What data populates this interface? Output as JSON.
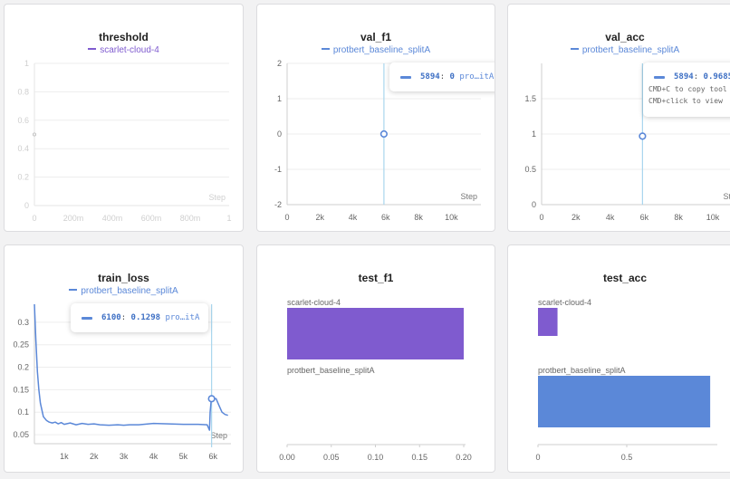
{
  "colors": {
    "purple": "#7f5bcf",
    "blue": "#5b88d8",
    "hover_line": "#a9d6ee"
  },
  "panels": [
    {
      "title": "threshold",
      "legend": "scarlet-cloud-4",
      "legend_color": "#7f5bcf",
      "step_label": "Step",
      "chart_data": {
        "type": "line",
        "x": [
          0
        ],
        "series": [
          {
            "name": "scarlet-cloud-4",
            "values": [
              0.5
            ]
          }
        ],
        "x_ticks": [
          "0",
          "200m",
          "400m",
          "600m",
          "800m",
          "1"
        ],
        "y_ticks": [
          "0",
          "0.2",
          "0.4",
          "0.6",
          "0.8",
          "1"
        ],
        "xlim": [
          0,
          1
        ],
        "ylim": [
          0,
          1
        ],
        "xlabel": "Step",
        "grid": true,
        "faded": true
      }
    },
    {
      "title": "val_f1",
      "legend": "protbert_baseline_splitA",
      "legend_color": "#5b88d8",
      "step_label": "Step",
      "tooltip": {
        "step": "5894",
        "value": "0",
        "name": "pro…itA"
      },
      "chart_data": {
        "type": "line",
        "x": [
          5894
        ],
        "series": [
          {
            "name": "protbert_baseline_splitA",
            "values": [
              0
            ]
          }
        ],
        "x_ticks": [
          "0",
          "2k",
          "4k",
          "6k",
          "8k",
          "10k"
        ],
        "y_ticks": [
          "-2",
          "-1",
          "0",
          "1",
          "2"
        ],
        "xlim": [
          0,
          11800
        ],
        "ylim": [
          -2,
          2
        ],
        "xlabel": "Step",
        "grid": true
      }
    },
    {
      "title": "val_acc",
      "legend": "protbert_baseline_splitA",
      "legend_color": "#5b88d8",
      "step_label": "Step",
      "tooltip": {
        "step": "5894",
        "value": "0.9685",
        "hint1": "CMD+C to copy tool",
        "hint2": "CMD+click to view"
      },
      "chart_data": {
        "type": "line",
        "x": [
          5894
        ],
        "series": [
          {
            "name": "protbert_baseline_splitA",
            "values": [
              0.97
            ]
          }
        ],
        "x_ticks": [
          "0",
          "2k",
          "4k",
          "6k",
          "8k",
          "10k"
        ],
        "y_ticks": [
          "0",
          "0.5",
          "1",
          "1.5"
        ],
        "xlim": [
          0,
          11800
        ],
        "ylim": [
          0,
          2
        ],
        "xlabel": "Step",
        "grid": true
      }
    },
    {
      "title": "train_loss",
      "legend": "protbert_baseline_splitA",
      "legend_color": "#5b88d8",
      "step_label": "Step",
      "tooltip": {
        "step": "6100",
        "value": "0.1298",
        "name": "pro…itA"
      },
      "chart_data": {
        "type": "line",
        "x": [
          0,
          50,
          100,
          150,
          200,
          300,
          400,
          500,
          600,
          700,
          800,
          900,
          1000,
          1200,
          1400,
          1600,
          1800,
          2000,
          2200,
          2500,
          2800,
          3000,
          3200,
          3500,
          4000,
          4500,
          5000,
          5500,
          5800,
          5880,
          5900,
          5950,
          6000,
          6100,
          6200,
          6300,
          6400,
          6500
        ],
        "series": [
          {
            "name": "protbert_baseline_splitA",
            "values": [
              0.34,
              0.26,
              0.19,
              0.15,
              0.12,
              0.09,
              0.082,
              0.078,
              0.076,
              0.078,
              0.074,
              0.077,
              0.073,
              0.076,
              0.072,
              0.075,
              0.073,
              0.074,
              0.072,
              0.071,
              0.072,
              0.071,
              0.072,
              0.072,
              0.075,
              0.074,
              0.073,
              0.073,
              0.072,
              0.06,
              0.1,
              0.135,
              0.13,
              0.13,
              0.115,
              0.1,
              0.095,
              0.093
            ]
          }
        ],
        "x_ticks": [
          "1k",
          "2k",
          "3k",
          "4k",
          "5k",
          "6k"
        ],
        "y_ticks": [
          "0.05",
          "0.1",
          "0.15",
          "0.2",
          "0.25",
          "0.3"
        ],
        "xlim": [
          0,
          6600
        ],
        "ylim": [
          0.03,
          0.34
        ],
        "xlabel": "Step",
        "grid": true
      }
    },
    {
      "title": "test_f1",
      "chart_data": {
        "type": "bar",
        "orientation": "horizontal",
        "categories": [
          "scarlet-cloud-4",
          "protbert_baseline_splitA"
        ],
        "values": [
          0.2,
          0
        ],
        "bar_colors": [
          "#7f5bcf",
          "#5b88d8"
        ],
        "x_ticks": [
          "0.00",
          "0.05",
          "0.10",
          "0.15",
          "0.20"
        ],
        "xlim": [
          0,
          0.2
        ]
      }
    },
    {
      "title": "test_acc",
      "chart_data": {
        "type": "bar",
        "orientation": "horizontal",
        "categories": [
          "scarlet-cloud-4",
          "protbert_baseline_splitA"
        ],
        "values": [
          0.11,
          0.97
        ],
        "bar_colors": [
          "#7f5bcf",
          "#5b88d8"
        ],
        "x_ticks": [
          "0",
          "0.5"
        ],
        "xlim": [
          0,
          1
        ]
      }
    }
  ]
}
